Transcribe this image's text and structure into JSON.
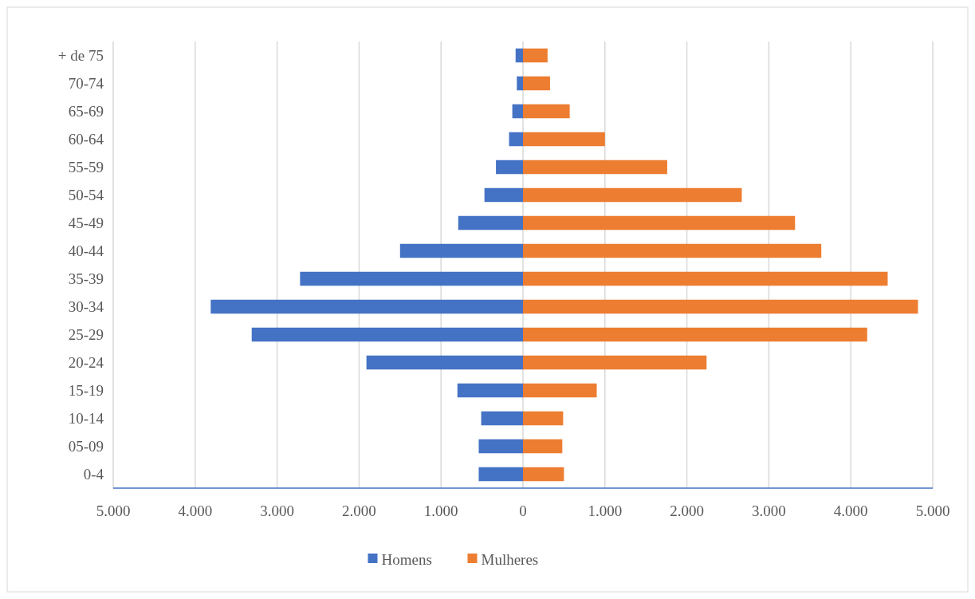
{
  "chart_data": {
    "type": "bar",
    "orientation": "horizontal",
    "stacked": true,
    "categories": [
      "+ de 75",
      "70-74",
      "65-69",
      "60-64",
      "55-59",
      "50-54",
      "45-49",
      "40-44",
      "35-39",
      "30-34",
      "25-29",
      "20-24",
      "15-19",
      "10-14",
      "05-09",
      "0-4"
    ],
    "series": [
      {
        "name": "Homens",
        "color": "#4472c4",
        "values": [
          -90,
          -75,
          -130,
          -170,
          -330,
          -470,
          -790,
          -1500,
          -2720,
          -3810,
          -3310,
          -1910,
          -800,
          -510,
          -540,
          -540
        ]
      },
      {
        "name": "Mulheres",
        "color": "#ed7d31",
        "values": [
          300,
          330,
          570,
          1000,
          1760,
          2670,
          3320,
          3640,
          4450,
          4820,
          4200,
          2240,
          900,
          490,
          480,
          500
        ]
      }
    ],
    "xlim": [
      -5000,
      5000
    ],
    "xticks": [
      {
        "value": -5000,
        "label": "5.000"
      },
      {
        "value": -4000,
        "label": "4.000"
      },
      {
        "value": -3000,
        "label": "3.000"
      },
      {
        "value": -2000,
        "label": "2.000"
      },
      {
        "value": -1000,
        "label": "1.000"
      },
      0,
      {
        "value": 1000,
        "label": "1.000"
      },
      {
        "value": 2000,
        "label": "2.000"
      },
      {
        "value": 3000,
        "label": "3.000"
      },
      {
        "value": 4000,
        "label": "4.000"
      },
      {
        "value": 5000,
        "label": "5.000"
      }
    ],
    "grid": "x",
    "legend": "bottom"
  }
}
